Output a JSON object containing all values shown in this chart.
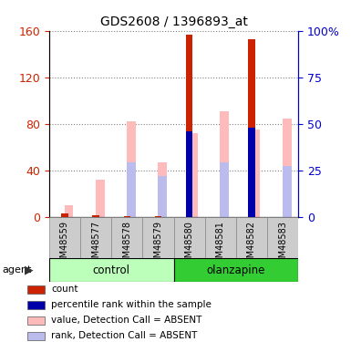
{
  "title": "GDS2608 / 1396893_at",
  "samples": [
    "GSM48559",
    "GSM48577",
    "GSM48578",
    "GSM48579",
    "GSM48580",
    "GSM48581",
    "GSM48582",
    "GSM48583"
  ],
  "groups": [
    {
      "name": "control",
      "indices": [
        0,
        1,
        2,
        3
      ],
      "color": "#bbffbb"
    },
    {
      "name": "olanzapine",
      "indices": [
        4,
        5,
        6,
        7
      ],
      "color": "#33cc33"
    }
  ],
  "red_count": [
    3,
    2,
    1,
    1,
    157,
    0,
    153,
    0
  ],
  "blue_percentile": [
    0,
    0,
    0,
    0,
    46,
    0,
    48,
    0
  ],
  "pink_value": [
    10,
    32,
    82,
    47,
    72,
    91,
    75,
    85
  ],
  "lightblue_rank": [
    0,
    0,
    47,
    35,
    0,
    47,
    0,
    44
  ],
  "left_ylim": [
    0,
    160
  ],
  "left_yticks": [
    0,
    40,
    80,
    120,
    160
  ],
  "right_ylim": [
    0,
    100
  ],
  "right_yticks": [
    0,
    25,
    50,
    75,
    100
  ],
  "right_yticklabels": [
    "0",
    "25",
    "50",
    "75",
    "100%"
  ],
  "left_color": "#cc2200",
  "right_color": "#0000cc",
  "bar_width": 0.22,
  "legend": [
    {
      "label": "count",
      "color": "#cc2200"
    },
    {
      "label": "percentile rank within the sample",
      "color": "#0000aa"
    },
    {
      "label": "value, Detection Call = ABSENT",
      "color": "#ffbbbb"
    },
    {
      "label": "rank, Detection Call = ABSENT",
      "color": "#bbbbee"
    }
  ]
}
